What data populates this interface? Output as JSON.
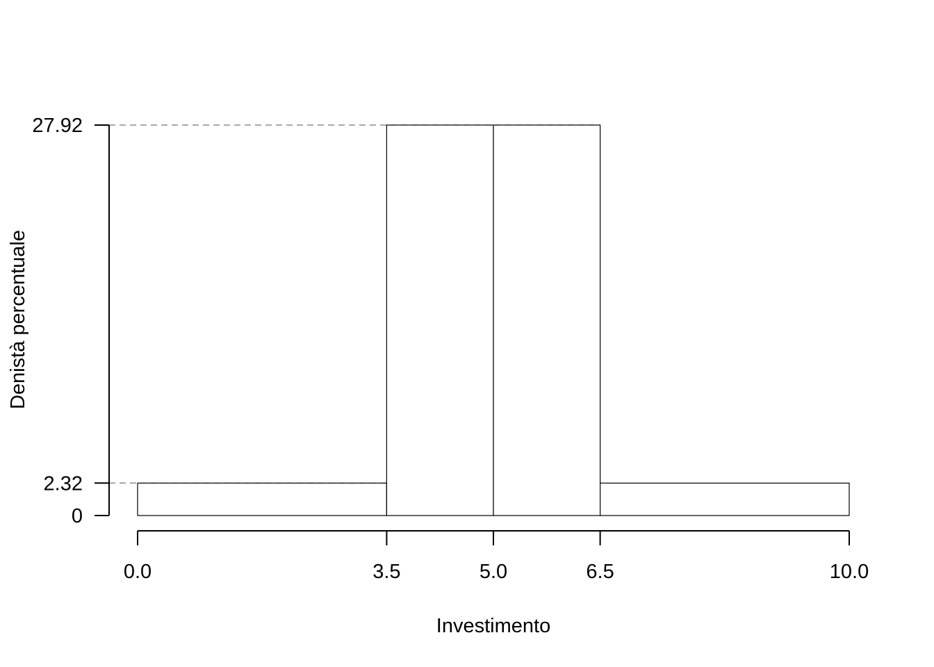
{
  "chart_data": {
    "type": "bar",
    "subtype": "histogram",
    "title": "",
    "xlabel": "Investimento",
    "ylabel": "Denistà percentuale",
    "bins": [
      {
        "from": 0.0,
        "to": 3.5,
        "density": 2.32
      },
      {
        "from": 3.5,
        "to": 5.0,
        "density": 27.92
      },
      {
        "from": 5.0,
        "to": 6.5,
        "density": 27.92
      },
      {
        "from": 6.5,
        "to": 10.0,
        "density": 2.32
      }
    ],
    "x_ticks": [
      {
        "value": 0.0,
        "label": "0.0"
      },
      {
        "value": 3.5,
        "label": "3.5"
      },
      {
        "value": 5.0,
        "label": "5.0"
      },
      {
        "value": 6.5,
        "label": "6.5"
      },
      {
        "value": 10.0,
        "label": "10.0"
      }
    ],
    "y_ticks": [
      {
        "value": 0,
        "label": "0"
      },
      {
        "value": 2.32,
        "label": "2.32"
      },
      {
        "value": 27.92,
        "label": "27.92"
      }
    ],
    "xlim": [
      0,
      10
    ],
    "ylim": [
      0,
      27.92
    ],
    "reference_lines": [
      {
        "axis": "y",
        "value": 2.32,
        "style": "dashed",
        "color": "#8c8c8c"
      },
      {
        "axis": "y",
        "value": 27.92,
        "style": "dashed",
        "color": "#8c8c8c"
      }
    ],
    "grid": false,
    "legend": "none",
    "colors": {
      "bar_fill": "#ffffff",
      "bar_edge": "#000000",
      "axis": "#000000"
    }
  }
}
